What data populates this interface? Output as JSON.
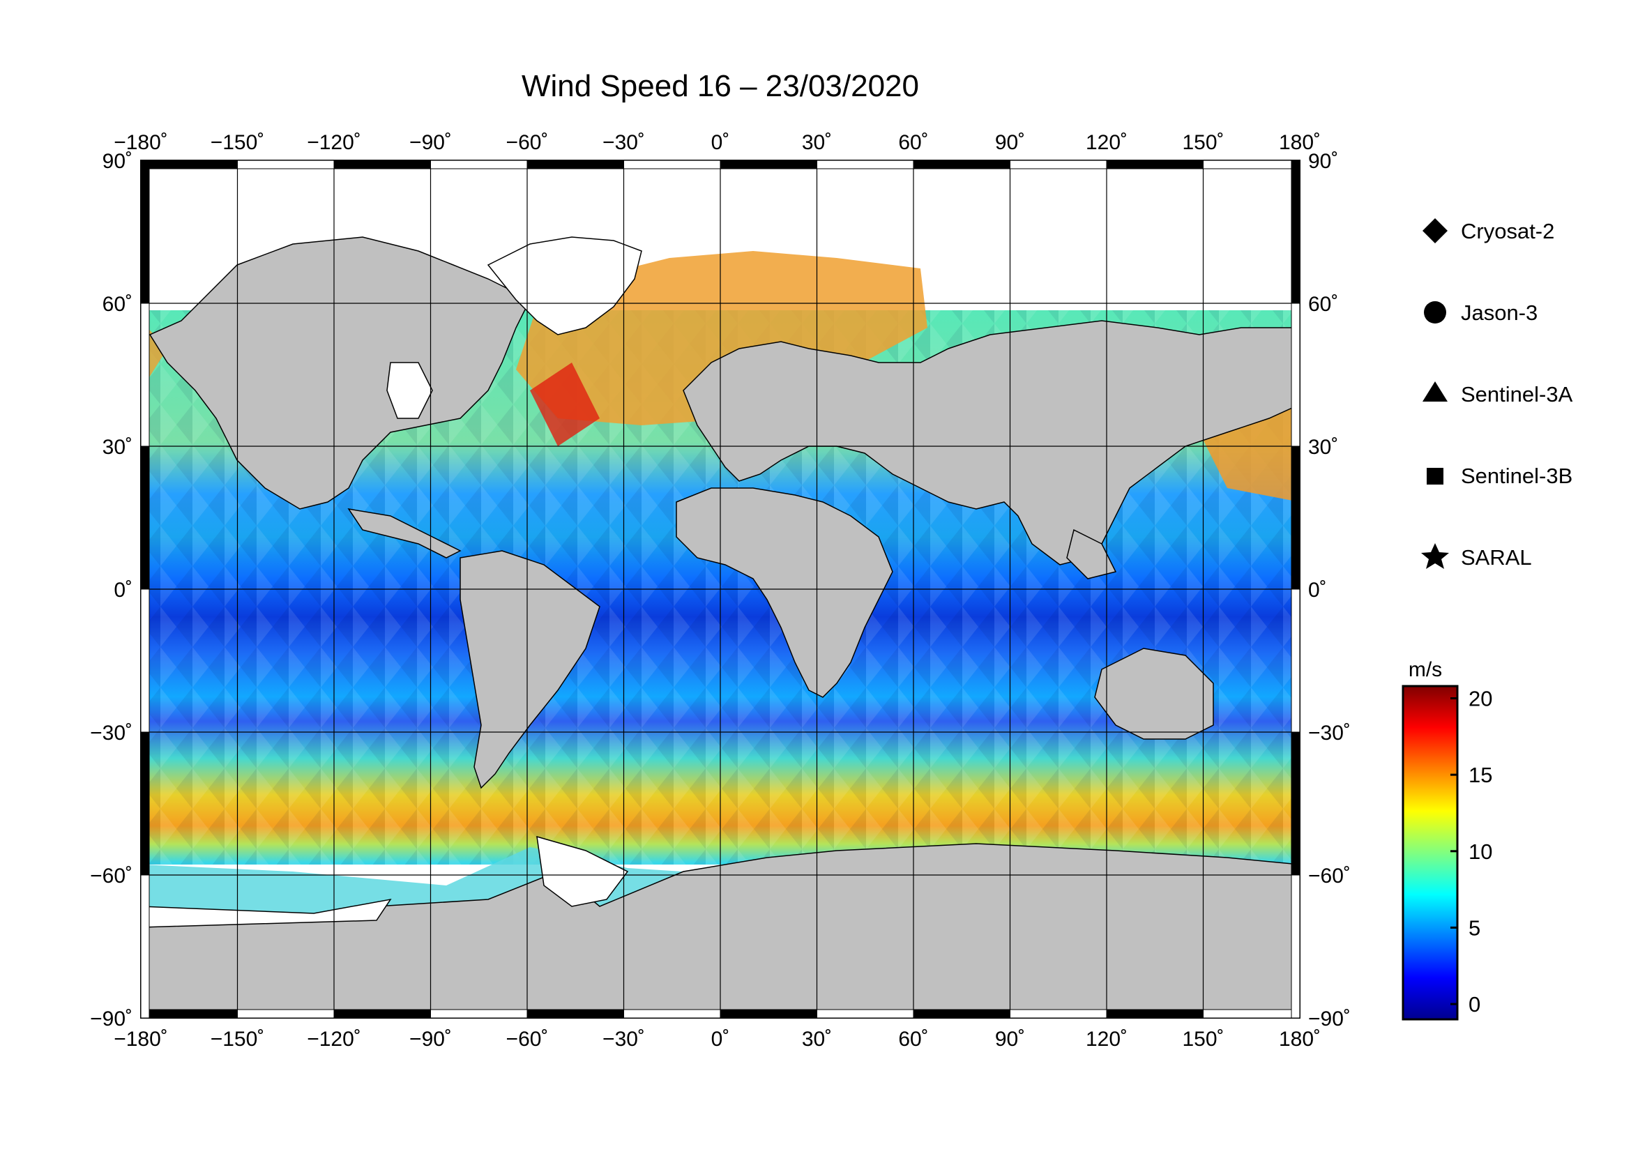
{
  "map": {
    "title": "Wind Speed 16 – 23/03/2020",
    "lon_ticks": [
      "−180˚",
      "−150˚",
      "−120˚",
      "−90˚",
      "−60˚",
      "−30˚",
      "0˚",
      "30˚",
      "60˚",
      "90˚",
      "120˚",
      "150˚",
      "180˚"
    ],
    "lat_ticks": [
      "90˚",
      "60˚",
      "30˚",
      "0˚",
      "−30˚",
      "−60˚",
      "−90˚"
    ],
    "lon_range": [
      -180,
      180
    ],
    "lat_range": [
      -90,
      90
    ],
    "gridlines": true,
    "land_color": "#c0c0c0",
    "ice_color": "#ffffff"
  },
  "legend": {
    "placement": "right",
    "items": [
      {
        "label": "Cryosat-2",
        "symbol": "diamond-icon"
      },
      {
        "label": "Jason-3",
        "symbol": "circle-icon"
      },
      {
        "label": "Sentinel-3A",
        "symbol": "triangle-icon"
      },
      {
        "label": "Sentinel-3B",
        "symbol": "square-icon"
      },
      {
        "label": "SARAL",
        "symbol": "star-icon"
      }
    ]
  },
  "colorbar": {
    "unit": "m/s",
    "range": [
      -1,
      20.8
    ],
    "ticks": [
      {
        "value": 20,
        "label": "20"
      },
      {
        "value": 15,
        "label": "15"
      },
      {
        "value": 10,
        "label": "10"
      },
      {
        "value": 5,
        "label": "5"
      },
      {
        "value": 0,
        "label": "0"
      }
    ],
    "colors": [
      "#00008f",
      "#0000ff",
      "#0080ff",
      "#00ffff",
      "#80ff80",
      "#ffff00",
      "#ff8000",
      "#ff0000",
      "#800000"
    ]
  },
  "chart_data": {
    "type": "heatmap",
    "title": "Wind Speed 16 – 23/03/2020",
    "xlabel": "",
    "ylabel": "",
    "xlim": [
      -180,
      180
    ],
    "ylim": [
      -90,
      90
    ],
    "value_unit": "m/s",
    "value_range": [
      0,
      20
    ],
    "approx_zonal_wind_speed": [
      {
        "lat": 65,
        "value": 12
      },
      {
        "lat": 50,
        "value": 11
      },
      {
        "lat": 40,
        "value": 8
      },
      {
        "lat": 20,
        "value": 6
      },
      {
        "lat": 5,
        "value": 4
      },
      {
        "lat": -5,
        "value": 4
      },
      {
        "lat": -15,
        "value": 6
      },
      {
        "lat": -30,
        "value": 5
      },
      {
        "lat": -40,
        "value": 10
      },
      {
        "lat": -50,
        "value": 13
      },
      {
        "lat": -60,
        "value": 12
      },
      {
        "lat": -68,
        "value": 9
      }
    ]
  }
}
